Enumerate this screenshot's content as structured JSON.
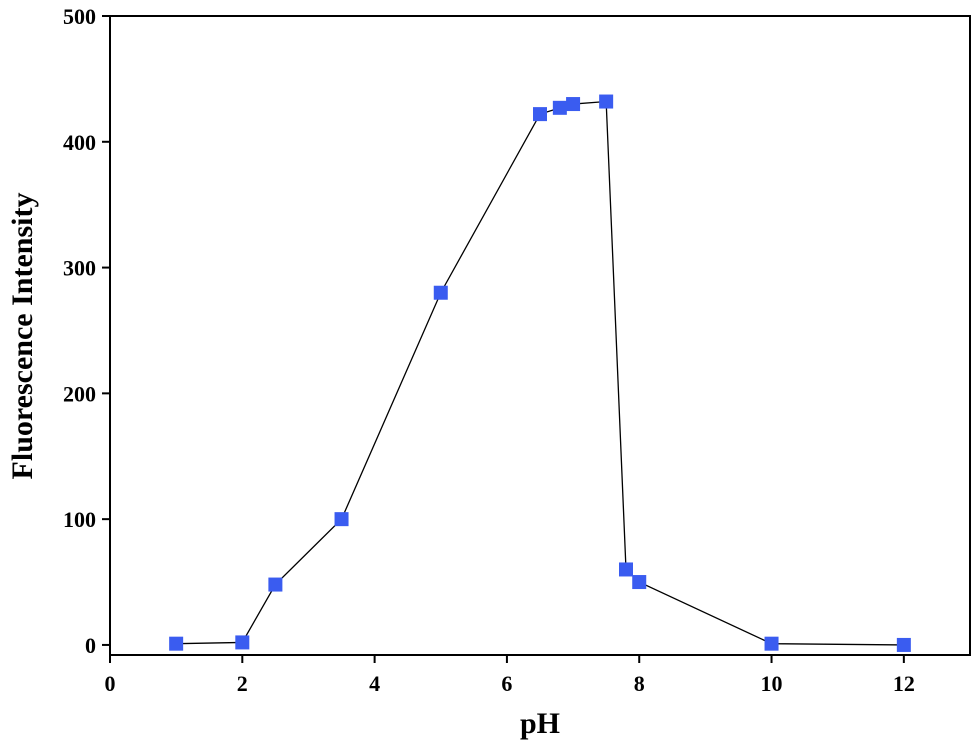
{
  "chart_data": {
    "type": "line",
    "x_label": "pH",
    "y_label": "Fluorescence Intensity",
    "x": [
      1,
      2,
      2.5,
      3.5,
      5,
      6.5,
      6.8,
      7,
      7.5,
      7.8,
      8,
      10,
      12
    ],
    "series": [
      {
        "color": "#3a5cf0",
        "values": [
          1,
          2,
          48,
          100,
          280,
          422,
          427,
          430,
          432,
          60,
          50,
          1,
          0
        ]
      }
    ],
    "xlim": [
      0,
      13
    ],
    "xticks": [
      0,
      2,
      4,
      6,
      8,
      10,
      12
    ],
    "ylim": [
      -8,
      500
    ],
    "yticks": [
      0,
      100,
      200,
      300,
      400,
      500
    ]
  }
}
